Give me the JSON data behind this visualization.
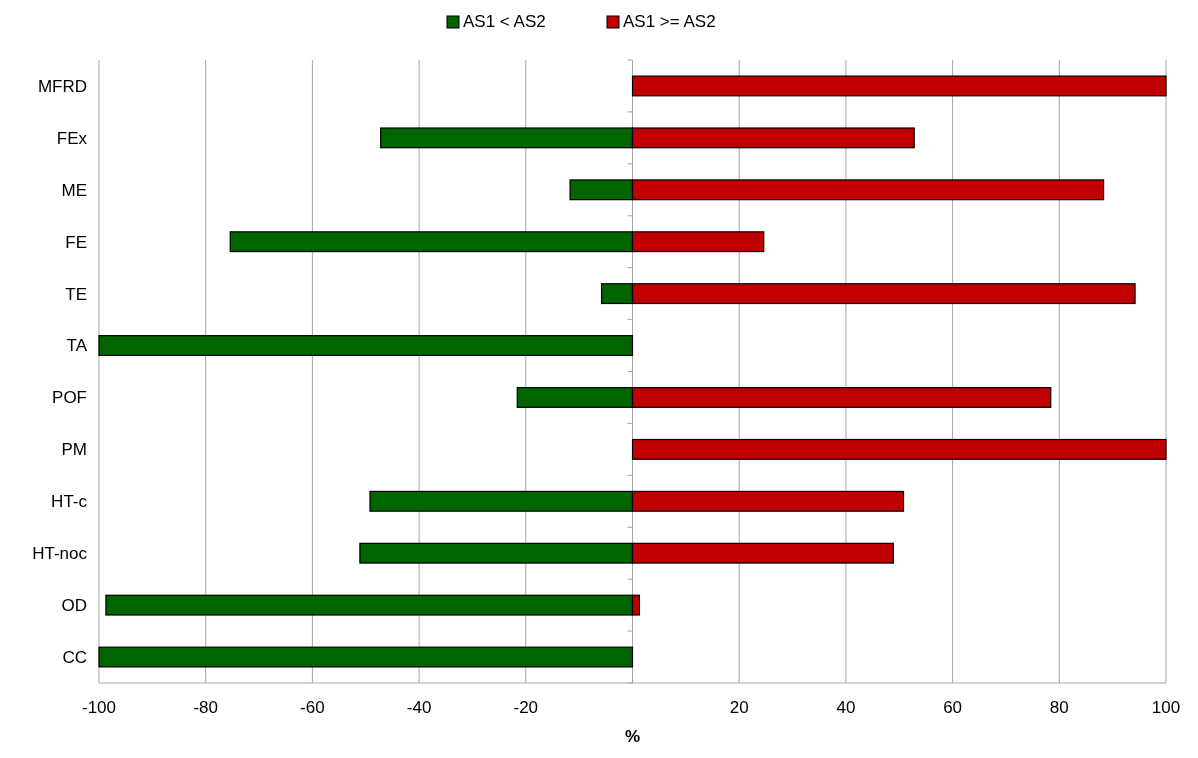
{
  "chart_data": {
    "type": "bar",
    "orientation": "horizontal",
    "stacked": true,
    "xlabel": "%",
    "categories": [
      "MFRD",
      "FEx",
      "ME",
      "FE",
      "TE",
      "TA",
      "POF",
      "PM",
      "HT-c",
      "HT-noc",
      "OD",
      "CC"
    ],
    "series": [
      {
        "name": "AS1 < AS2",
        "color": "#006400",
        "values": [
          0,
          -47.2,
          -11.7,
          -75.4,
          -5.8,
          -100,
          -21.6,
          0,
          -49.2,
          -51.1,
          -98.7,
          -100
        ]
      },
      {
        "name": "AS1 >= AS2",
        "color": "#c00000",
        "values": [
          100,
          52.8,
          88.3,
          24.6,
          94.2,
          0,
          78.4,
          100,
          50.8,
          48.9,
          1.3,
          0
        ]
      }
    ],
    "xlim": [
      -100,
      100
    ],
    "xticks": [
      -100,
      -80,
      -60,
      -40,
      -20,
      {
        "value": 0,
        "label": null
      },
      20,
      40,
      60,
      80,
      100
    ],
    "grid": "x",
    "legend": "top"
  }
}
